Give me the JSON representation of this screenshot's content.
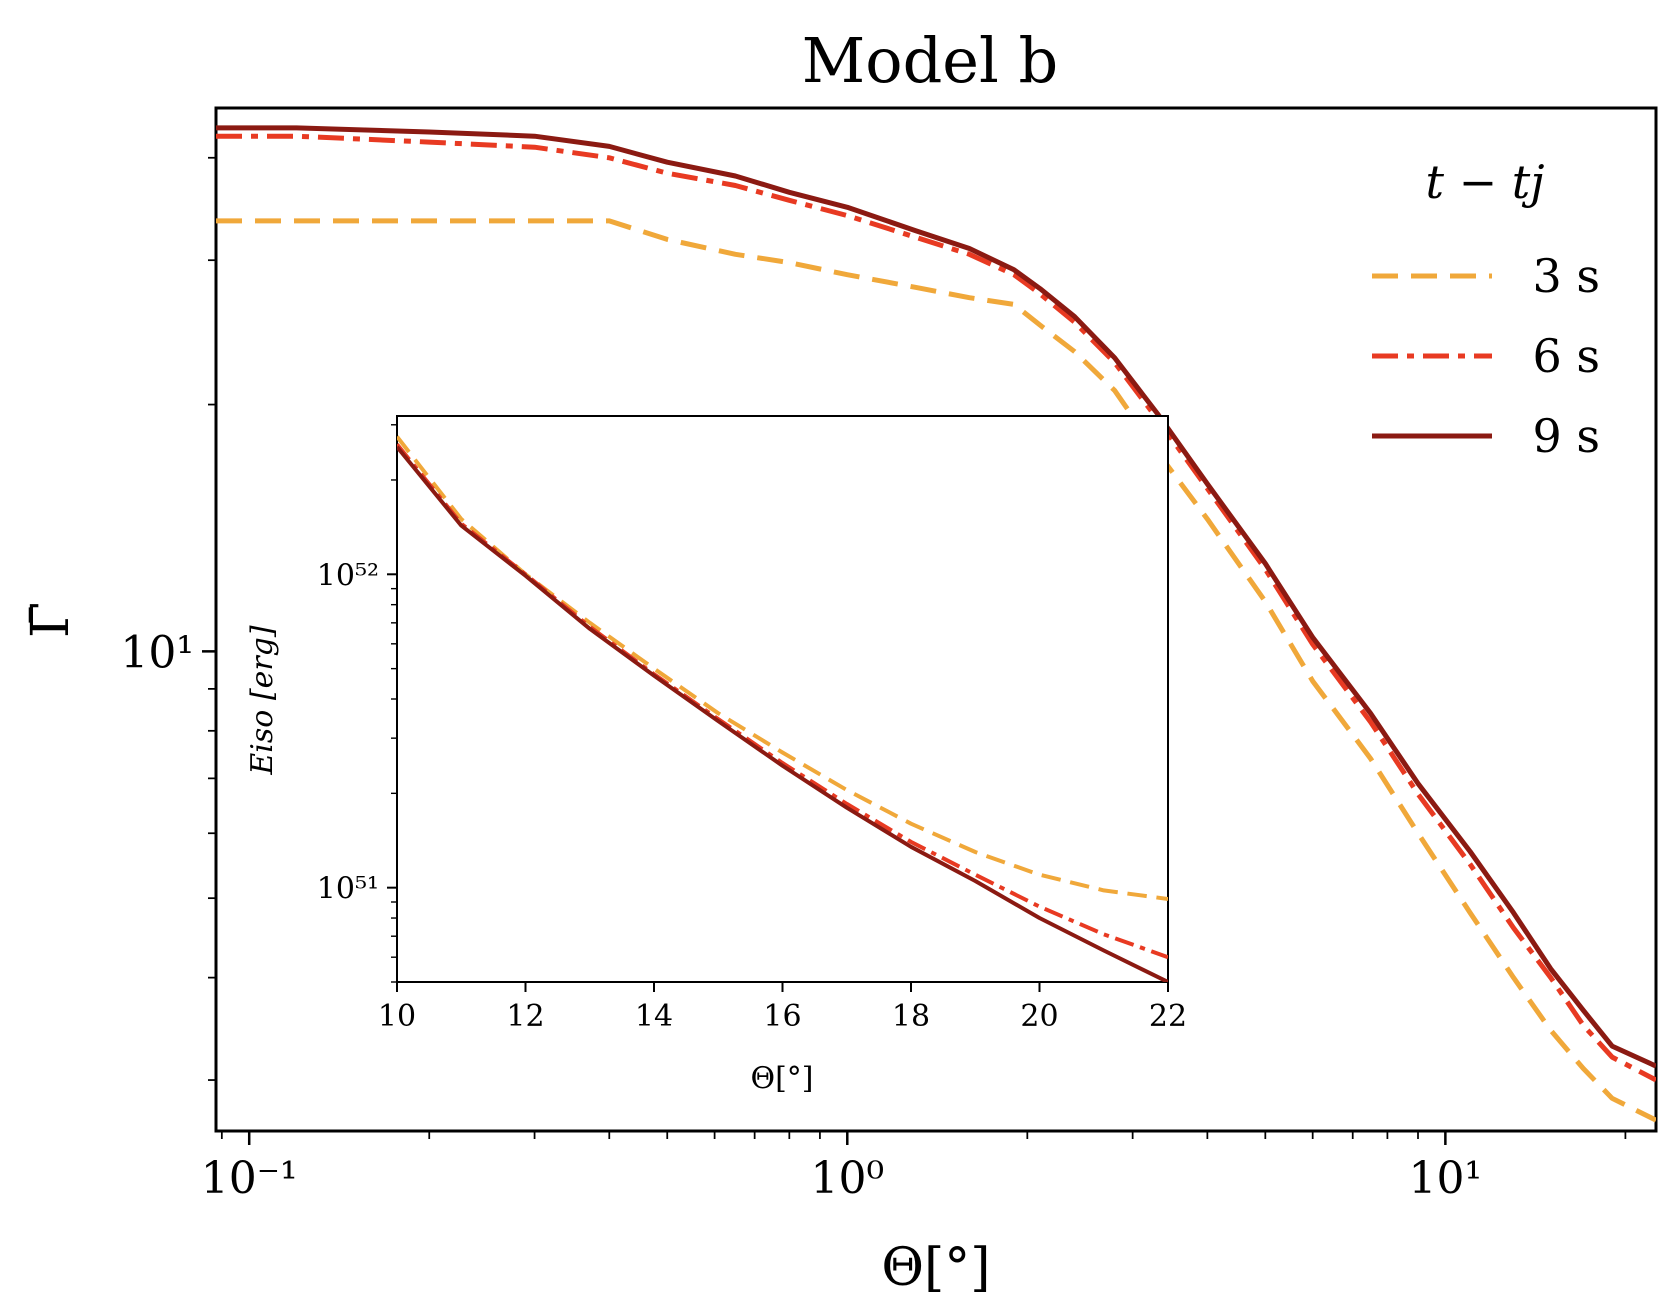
{
  "chart_data": [
    {
      "type": "line",
      "title": "Model b",
      "xlabel": "Θ[°]",
      "ylabel": "Γ̄",
      "xscale": "log",
      "yscale": "log",
      "xlim": [
        0.088,
        22.5
      ],
      "ylim": [
        2.6,
        46
      ],
      "x_ticks": [
        {
          "v": 0.1,
          "label": "10⁻¹"
        },
        {
          "v": 1,
          "label": "10⁰"
        },
        {
          "v": 10,
          "label": "10¹"
        }
      ],
      "y_ticks": [
        {
          "v": 10,
          "label": "10¹"
        }
      ],
      "legend": {
        "title": "t − tj",
        "position": "top-right"
      },
      "series": [
        {
          "name": "3 s",
          "color": "#f0a83a",
          "dash": "dashed",
          "x": [
            0.088,
            0.12,
            0.2,
            0.3,
            0.4,
            0.5,
            0.65,
            0.8,
            1.0,
            1.3,
            1.6,
            1.9,
            2.1,
            2.4,
            2.8,
            3.3,
            4.0,
            5.0,
            6.0,
            7.5,
            9.0,
            11,
            13,
            15,
            17,
            19,
            22.5
          ],
          "y": [
            33.5,
            33.5,
            33.5,
            33.5,
            33.5,
            31.8,
            30.5,
            29.8,
            28.8,
            27.8,
            27.0,
            26.5,
            25.0,
            23.2,
            20.8,
            17.5,
            14.5,
            11.5,
            9.2,
            7.4,
            6.0,
            4.8,
            4.0,
            3.45,
            3.1,
            2.85,
            2.68
          ]
        },
        {
          "name": "6 s",
          "color": "#e83a22",
          "dash": "dashdot",
          "x": [
            0.088,
            0.12,
            0.2,
            0.3,
            0.4,
            0.5,
            0.65,
            0.8,
            1.0,
            1.3,
            1.6,
            1.9,
            2.1,
            2.4,
            2.8,
            3.3,
            4.0,
            5.0,
            6.0,
            7.5,
            9.0,
            11,
            13,
            15,
            17,
            19,
            22.5
          ],
          "y": [
            42.5,
            42.5,
            41.8,
            41.2,
            40.0,
            38.3,
            37.0,
            35.5,
            34.0,
            32.0,
            30.5,
            28.8,
            27.3,
            25.2,
            22.5,
            19.2,
            15.8,
            12.6,
            10.2,
            8.2,
            6.7,
            5.5,
            4.6,
            4.0,
            3.5,
            3.2,
            3.0
          ]
        },
        {
          "name": "9 s",
          "color": "#8b1a12",
          "dash": "solid",
          "x": [
            0.088,
            0.12,
            0.2,
            0.3,
            0.4,
            0.5,
            0.65,
            0.8,
            1.0,
            1.3,
            1.6,
            1.9,
            2.1,
            2.4,
            2.8,
            3.3,
            4.0,
            5.0,
            6.0,
            7.5,
            9.0,
            11,
            13,
            15,
            17,
            19,
            22.5
          ],
          "y": [
            43.5,
            43.5,
            43.0,
            42.5,
            41.3,
            39.5,
            38.0,
            36.3,
            34.8,
            32.6,
            31.0,
            29.2,
            27.7,
            25.6,
            22.8,
            19.5,
            16.0,
            12.8,
            10.4,
            8.4,
            6.9,
            5.7,
            4.8,
            4.1,
            3.65,
            3.3,
            3.12
          ]
        }
      ]
    },
    {
      "type": "line",
      "title": "",
      "xlabel": "Θ[°]",
      "ylabel": "Eiso [erg]",
      "xscale": "linear",
      "yscale": "log",
      "xlim": [
        10,
        22
      ],
      "ylim": [
        5e+50,
        3.2e+52
      ],
      "x_ticks": [
        {
          "v": 10,
          "label": "10"
        },
        {
          "v": 12,
          "label": "12"
        },
        {
          "v": 14,
          "label": "14"
        },
        {
          "v": 16,
          "label": "16"
        },
        {
          "v": 18,
          "label": "18"
        },
        {
          "v": 20,
          "label": "20"
        },
        {
          "v": 22,
          "label": "22"
        }
      ],
      "y_ticks": [
        {
          "v": 1e+51,
          "label": "10⁵¹"
        },
        {
          "v": 1e+52,
          "label": "10⁵²"
        }
      ],
      "series": [
        {
          "name": "3 s",
          "color": "#f0a83a",
          "dash": "dashed",
          "x": [
            10,
            11,
            12,
            13,
            14,
            15,
            16,
            17,
            18,
            19,
            20,
            21,
            22
          ],
          "y": [
            2.75e+52,
            1.5e+52,
            1e+52,
            7e+51,
            5e+51,
            3.6e+51,
            2.7e+51,
            2.05e+51,
            1.6e+51,
            1.3e+51,
            1.1e+51,
            9.8e+50,
            9.2e+50
          ]
        },
        {
          "name": "6 s",
          "color": "#e83a22",
          "dash": "dashdot",
          "x": [
            10,
            11,
            12,
            13,
            14,
            15,
            16,
            17,
            18,
            19,
            20,
            21,
            22
          ],
          "y": [
            2.6e+52,
            1.45e+52,
            1e+52,
            6.8e+51,
            4.8e+51,
            3.45e+51,
            2.5e+51,
            1.85e+51,
            1.4e+51,
            1.1e+51,
            8.7e+50,
            7.1e+50,
            6e+50
          ]
        },
        {
          "name": "9 s",
          "color": "#8b1a12",
          "dash": "solid",
          "x": [
            10,
            11,
            12,
            13,
            14,
            15,
            16,
            17,
            18,
            19,
            20,
            21,
            22
          ],
          "y": [
            2.55e+52,
            1.43e+52,
            9.9e+51,
            6.7e+51,
            4.75e+51,
            3.4e+51,
            2.45e+51,
            1.8e+51,
            1.35e+51,
            1.05e+51,
            8e+50,
            6.3e+50,
            5e+50
          ]
        }
      ]
    }
  ]
}
